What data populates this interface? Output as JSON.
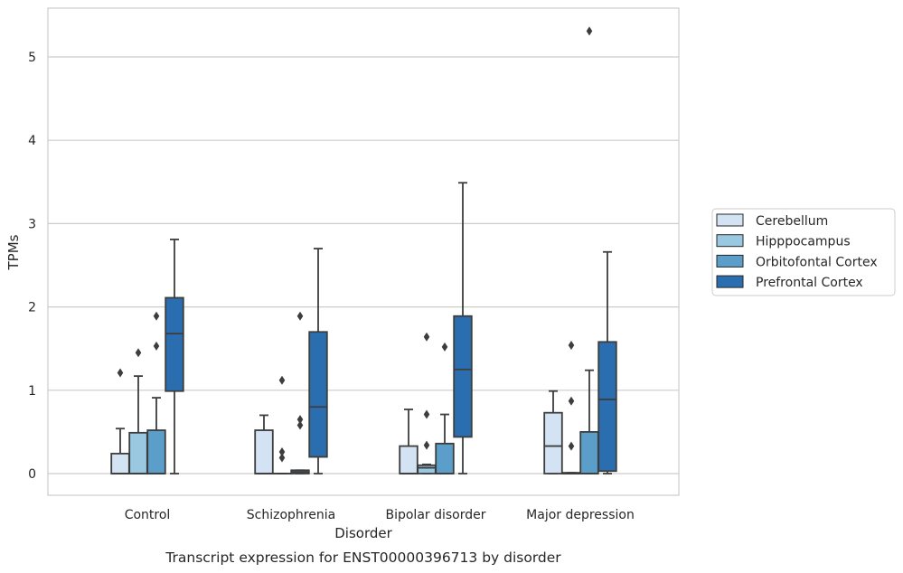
{
  "chart_data": {
    "type": "box",
    "caption": "Transcript expression for ENST00000396713 by disorder",
    "xlabel": "Disorder",
    "ylabel": "TPMs",
    "ylim": [
      -0.25,
      5.6
    ],
    "yticks": [
      0,
      1,
      2,
      3,
      4,
      5
    ],
    "grid": "horizontal",
    "legend_position": "right",
    "categories": [
      "Control",
      "Schizophrenia",
      "Bipolar disorder",
      "Major depression"
    ],
    "series": [
      {
        "name": "Cerebellum",
        "color": "#d3e3f3",
        "boxes": [
          {
            "q1": 0,
            "median": 0,
            "q3": 0.24,
            "whisker_low": 0,
            "whisker_high": 0.54,
            "outliers": [
              1.21
            ]
          },
          {
            "q1": 0,
            "median": 0,
            "q3": 0.52,
            "whisker_low": 0,
            "whisker_high": 0.7,
            "outliers": []
          },
          {
            "q1": 0,
            "median": 0,
            "q3": 0.33,
            "whisker_low": 0,
            "whisker_high": 0.77,
            "outliers": []
          },
          {
            "q1": 0,
            "median": 0.33,
            "q3": 0.73,
            "whisker_low": 0,
            "whisker_high": 0.99,
            "outliers": []
          }
        ]
      },
      {
        "name": "Hipppocampus",
        "color": "#9ac8e0",
        "boxes": [
          {
            "q1": 0,
            "median": 0,
            "q3": 0.49,
            "whisker_low": 0,
            "whisker_high": 1.17,
            "outliers": [
              1.45
            ]
          },
          {
            "q1": 0,
            "median": 0,
            "q3": 0,
            "whisker_low": 0,
            "whisker_high": 0,
            "outliers": [
              0.19,
              0.26,
              1.12
            ]
          },
          {
            "q1": 0,
            "median": 0.07,
            "q3": 0.1,
            "whisker_low": 0,
            "whisker_high": 0.11,
            "outliers": [
              0.34,
              0.71,
              1.64
            ]
          },
          {
            "q1": 0,
            "median": 0,
            "q3": 0.01,
            "whisker_low": 0,
            "whisker_high": 0.01,
            "outliers": [
              0.33,
              0.87,
              1.54
            ]
          }
        ]
      },
      {
        "name": "Orbitofontal Cortex",
        "color": "#5a9ec9",
        "boxes": [
          {
            "q1": 0,
            "median": 0,
            "q3": 0.52,
            "whisker_low": 0,
            "whisker_high": 0.91,
            "outliers": [
              1.53,
              1.89
            ]
          },
          {
            "q1": 0,
            "median": 0.02,
            "q3": 0.04,
            "whisker_low": 0,
            "whisker_high": 0.04,
            "outliers": [
              0.58,
              0.65,
              1.89
            ]
          },
          {
            "q1": 0,
            "median": 0,
            "q3": 0.36,
            "whisker_low": 0,
            "whisker_high": 0.71,
            "outliers": [
              1.52
            ]
          },
          {
            "q1": 0,
            "median": 0,
            "q3": 0.5,
            "whisker_low": 0,
            "whisker_high": 1.24,
            "outliers": [
              5.31
            ]
          }
        ]
      },
      {
        "name": "Prefrontal Cortex",
        "color": "#2a6eb0",
        "boxes": [
          {
            "q1": 0.99,
            "median": 1.68,
            "q3": 2.11,
            "whisker_low": 0,
            "whisker_high": 2.81,
            "outliers": []
          },
          {
            "q1": 0.2,
            "median": 0.8,
            "q3": 1.7,
            "whisker_low": 0,
            "whisker_high": 2.7,
            "outliers": []
          },
          {
            "q1": 0.44,
            "median": 1.25,
            "q3": 1.89,
            "whisker_low": 0,
            "whisker_high": 3.49,
            "outliers": []
          },
          {
            "q1": 0.03,
            "median": 0.89,
            "q3": 1.58,
            "whisker_low": 0,
            "whisker_high": 2.66,
            "outliers": []
          }
        ]
      }
    ]
  }
}
